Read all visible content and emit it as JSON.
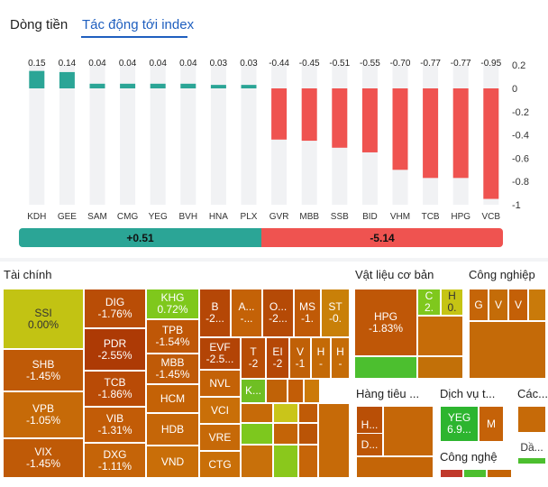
{
  "tabs": {
    "money_flow": "Dòng tiền",
    "index_impact": "Tác động tới index"
  },
  "chart_data": {
    "type": "bar",
    "title": "Tác động tới index",
    "categories": [
      "KDH",
      "GEE",
      "SAM",
      "CMG",
      "YEG",
      "BVH",
      "HNA",
      "PLX",
      "GVR",
      "MBB",
      "SSB",
      "BID",
      "VHM",
      "TCB",
      "HPG",
      "VCB"
    ],
    "values": [
      0.15,
      0.14,
      0.04,
      0.04,
      0.04,
      0.04,
      0.03,
      0.03,
      -0.44,
      -0.45,
      -0.51,
      -0.55,
      -0.7,
      -0.77,
      -0.77,
      -0.95
    ],
    "value_labels": [
      "0.15",
      "0.14",
      "0.04",
      "0.04",
      "0.04",
      "0.04",
      "0.03",
      "0.03",
      "-0.44",
      "-0.45",
      "-0.51",
      "-0.55",
      "-0.70",
      "-0.77",
      "-0.77",
      "-0.95"
    ],
    "ylim": [
      -1,
      0.2
    ],
    "yticks": [
      "0.2",
      "0",
      "-0.2",
      "-0.4",
      "-0.6",
      "-0.8",
      "-1"
    ],
    "ytick_values": [
      0.2,
      0,
      -0.2,
      -0.4,
      -0.6,
      -0.8,
      -1
    ],
    "pos_color": "#2ba596",
    "neg_color": "#ef5350"
  },
  "summary": {
    "positive": "+0.51",
    "negative": "-5.14",
    "positive_sum": 0.51,
    "negative_sum": -5.14
  },
  "treemap": {
    "sectors": {
      "finance": "Tài chính",
      "materials": "Vật liệu cơ bản",
      "industrial": "Công nghiệp",
      "consumer": "Hàng tiêu ...",
      "services": "Dịch vụ t...",
      "tech": "Công nghệ",
      "other": "Các..."
    },
    "tiles": {
      "ssi": {
        "t": "SSI",
        "v": "0.00%"
      },
      "shb": {
        "t": "SHB",
        "v": "-1.45%"
      },
      "vpb": {
        "t": "VPB",
        "v": "-1.05%"
      },
      "vix": {
        "t": "VIX",
        "v": "-1.45%"
      },
      "dig": {
        "t": "DIG",
        "v": "-1.76%"
      },
      "pdr": {
        "t": "PDR",
        "v": "-2.55%"
      },
      "tcb": {
        "t": "TCB",
        "v": "-1.86%"
      },
      "vib": {
        "t": "VIB",
        "v": "-1.31%"
      },
      "dxg": {
        "t": "DXG",
        "v": "-1.11%"
      },
      "khg": {
        "t": "KHG",
        "v": "0.72%"
      },
      "tpb": {
        "t": "TPB",
        "v": "-1.54%"
      },
      "mbb": {
        "t": "MBB",
        "v": "-1.45%"
      },
      "hcm": {
        "t": "HCM"
      },
      "hdb": {
        "t": "HDB"
      },
      "vnd": {
        "t": "VND"
      },
      "b": {
        "t": "B",
        "v": "-2..."
      },
      "a": {
        "t": "A...",
        "v": "-..."
      },
      "o": {
        "t": "O...",
        "v": "-2..."
      },
      "ms": {
        "t": "MS",
        "v": "-1."
      },
      "st": {
        "t": "ST",
        "v": "-0."
      },
      "evf": {
        "t": "EVF",
        "v": "-2.5..."
      },
      "nvl": {
        "t": "NVL"
      },
      "vci": {
        "t": "VCI"
      },
      "vre": {
        "t": "VRE"
      },
      "ctg": {
        "t": "CTG"
      },
      "t2": {
        "t": "T",
        "v": "-2"
      },
      "ei": {
        "t": "EI",
        "v": "-2"
      },
      "v1": {
        "t": "V",
        "v": "-1"
      },
      "h1": {
        "t": "H",
        "v": "-"
      },
      "h2": {
        "t": "H",
        "v": "-"
      },
      "k": {
        "t": "K..."
      },
      "hpg": {
        "t": "HPG",
        "v": "-1.83%"
      },
      "c2": {
        "t": "C",
        "v": "2."
      },
      "h0": {
        "t": "H",
        "v": "0."
      },
      "g": {
        "t": "G"
      },
      "v2": {
        "t": "V"
      },
      "v3": {
        "t": "V"
      },
      "hh": {
        "t": "H...",
        "v": "-..."
      },
      "d": {
        "t": "D..."
      },
      "yeg": {
        "t": "YEG",
        "v": "6.9..."
      },
      "m": {
        "t": "M"
      },
      "da": {
        "t": "Dầ..."
      }
    }
  }
}
